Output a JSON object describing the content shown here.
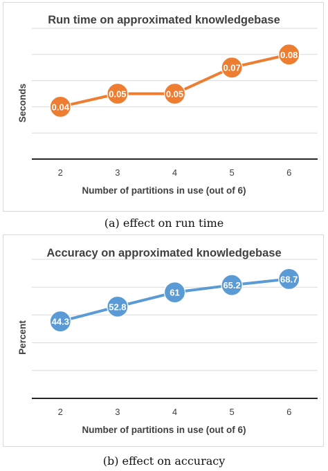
{
  "chart_data": [
    {
      "type": "line",
      "title": "Run time on approximated knowledgebase",
      "xlabel": "Number of partitions in use (out of 6)",
      "ylabel": "Seconds",
      "categories": [
        "2",
        "3",
        "4",
        "5",
        "6"
      ],
      "series": [
        {
          "values": [
            0.04,
            0.05,
            0.05,
            0.07,
            0.08
          ],
          "labels": [
            "0.04",
            "0.05",
            "0.05",
            "0.07",
            "0.08"
          ]
        }
      ],
      "ylim": [
        0,
        0.1
      ],
      "grid": true,
      "color": "#ED7D31",
      "caption": "(a) effect on run time"
    },
    {
      "type": "line",
      "title": "Accuracy on approximated knowledgebase",
      "xlabel": "Number of partitions in use (out of 6)",
      "ylabel": "Percent",
      "categories": [
        "2",
        "3",
        "4",
        "5",
        "6"
      ],
      "series": [
        {
          "values": [
            44.3,
            52.8,
            61,
            65.2,
            68.7
          ],
          "labels": [
            "44.3",
            "52.8",
            "61",
            "65.2",
            "68.7"
          ]
        }
      ],
      "ylim": [
        0,
        80
      ],
      "grid": true,
      "color": "#5B9BD5",
      "caption": "(b) effect on accuracy"
    }
  ]
}
